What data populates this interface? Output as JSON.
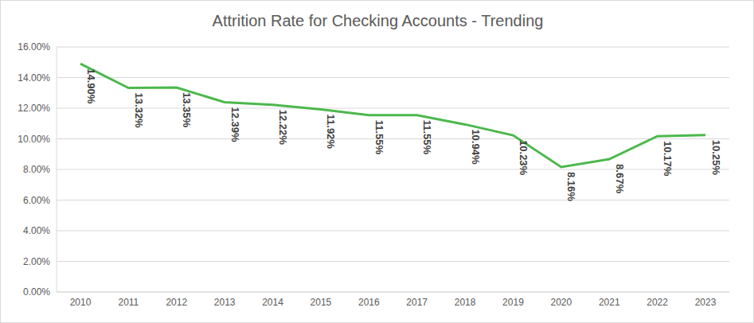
{
  "chart_data": {
    "type": "line",
    "title": "Attrition Rate for Checking Accounts - Trending",
    "categories": [
      "2010",
      "2011",
      "2012",
      "2013",
      "2014",
      "2015",
      "2016",
      "2017",
      "2018",
      "2019",
      "2020",
      "2021",
      "2022",
      "2023"
    ],
    "values": [
      14.9,
      13.32,
      13.35,
      12.39,
      12.22,
      11.92,
      11.55,
      11.55,
      10.94,
      10.23,
      8.16,
      8.67,
      10.17,
      10.25
    ],
    "value_labels": [
      "14.90%",
      "13.32%",
      "13.35%",
      "12.39%",
      "12.22%",
      "11.92%",
      "11.55%",
      "11.55%",
      "10.94%",
      "10.23%",
      "8.16%",
      "8.67%",
      "10.17%",
      "10.25%"
    ],
    "color": "#4cb84c",
    "ylim": [
      0,
      16
    ],
    "yticks": [
      {
        "value": 0,
        "label": "0.00%"
      },
      {
        "value": 2,
        "label": "2.00%"
      },
      {
        "value": 4,
        "label": "4.00%"
      },
      {
        "value": 6,
        "label": "6.00%"
      },
      {
        "value": 8,
        "label": "8.00%"
      },
      {
        "value": 10,
        "label": "10.00%"
      },
      {
        "value": 12,
        "label": "12.00%"
      },
      {
        "value": 14,
        "label": "14.00%"
      },
      {
        "value": 16,
        "label": "16.00%"
      }
    ],
    "grid": true,
    "data_labels": true
  }
}
